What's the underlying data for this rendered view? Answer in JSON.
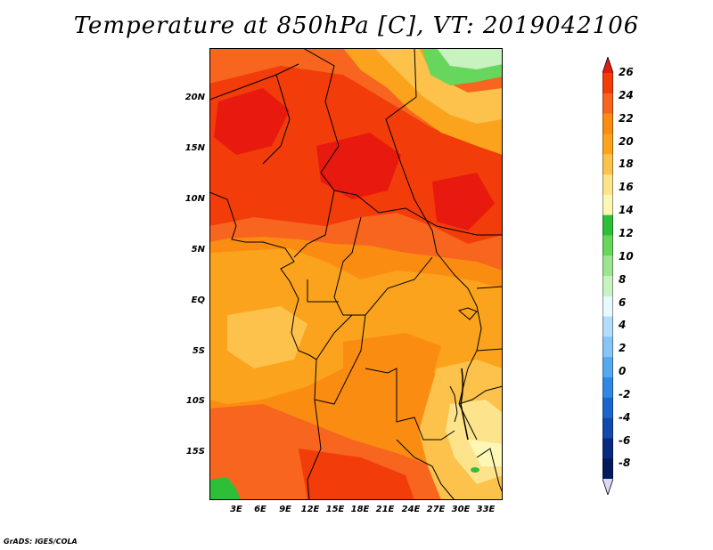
{
  "title": "Temperature at 850hPa [C], VT: 2019042106",
  "footer": "GrADS: IGES/COLA",
  "map": {
    "variable": "Temperature at 850hPa",
    "units": "C",
    "valid_time": "2019042106",
    "lon_range": [
      0,
      35
    ],
    "lat_range": [
      -20,
      24
    ],
    "lat_labels": [
      "20N",
      "15N",
      "10N",
      "5N",
      "EQ",
      "5S",
      "10S",
      "15S"
    ],
    "lon_labels": [
      "3E",
      "6E",
      "9E",
      "12E",
      "15E",
      "18E",
      "21E",
      "24E",
      "27E",
      "30E",
      "33E"
    ]
  },
  "colorbar": {
    "labels": [
      "26",
      "24",
      "22",
      "20",
      "18",
      "16",
      "14",
      "12",
      "10",
      "8",
      "6",
      "4",
      "2",
      "0",
      "-2",
      "-4",
      "-6",
      "-8"
    ],
    "colors": [
      "#e8190f",
      "#f23c0a",
      "#f7651e",
      "#fb8c12",
      "#fba31c",
      "#fcc24c",
      "#fde48c",
      "#fdf7b6",
      "#2fbe37",
      "#66d65c",
      "#9de592",
      "#c8f2c0",
      "#e7f8ff",
      "#b2dcfb",
      "#87c5f7",
      "#56a8ef",
      "#2f89e4",
      "#1b66cc",
      "#1249ad",
      "#0a2a80",
      "#031a5c",
      "#dcd8f5"
    ]
  }
}
